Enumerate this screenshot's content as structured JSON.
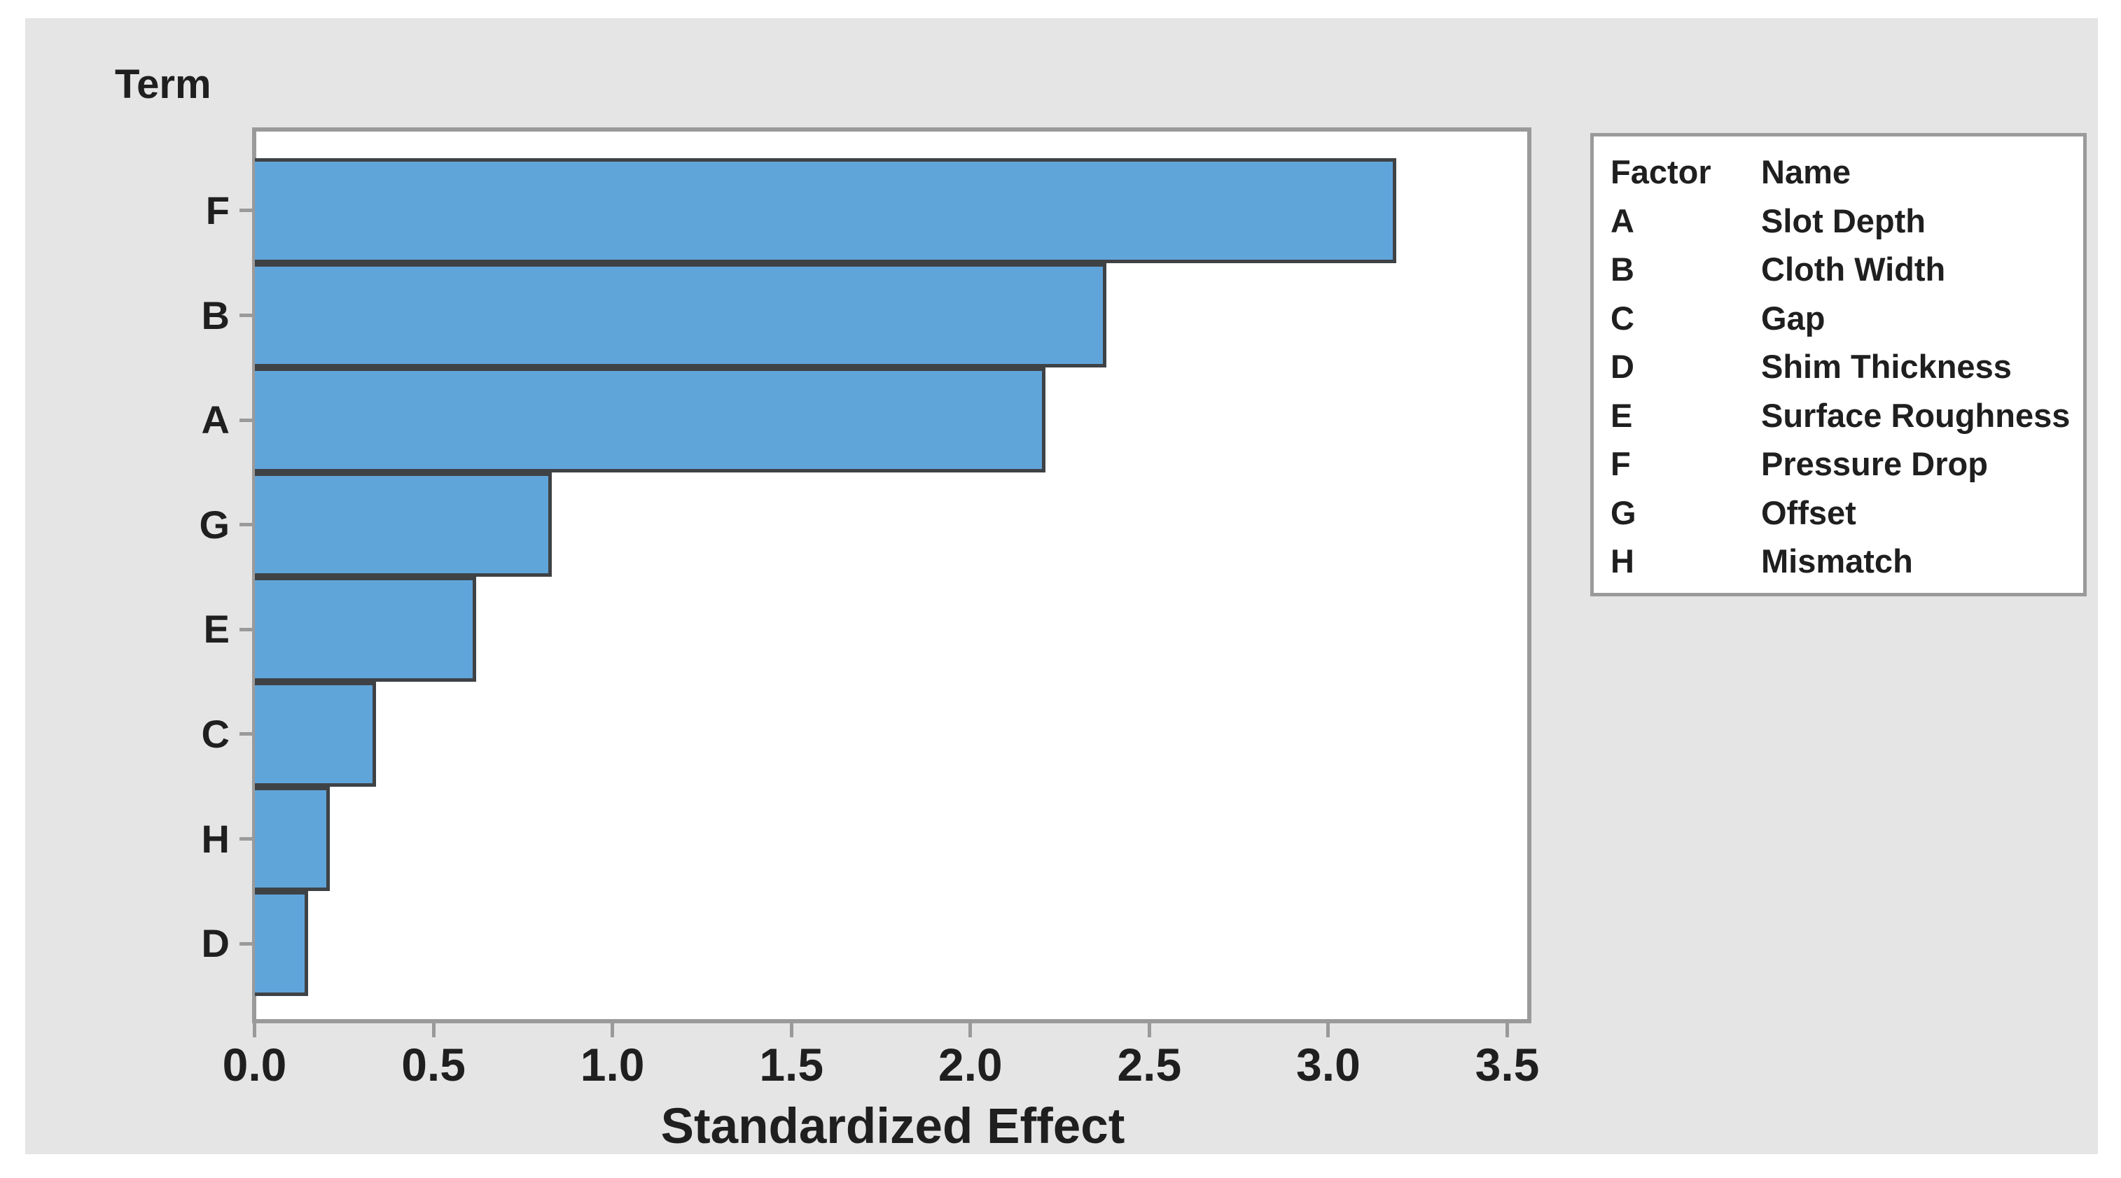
{
  "chart_data": {
    "type": "bar",
    "orientation": "horizontal",
    "title": "",
    "xlabel": "Standardized Effect",
    "ylabel": "Term",
    "categories": [
      "F",
      "B",
      "A",
      "G",
      "E",
      "C",
      "H",
      "D"
    ],
    "values": [
      3.19,
      2.38,
      2.21,
      0.83,
      0.62,
      0.34,
      0.21,
      0.15
    ],
    "xticks": [
      "0.0",
      "0.5",
      "1.0",
      "1.5",
      "2.0",
      "2.5",
      "3.0",
      "3.5"
    ],
    "xlim": [
      0,
      3.57
    ],
    "grid": false,
    "legend_position": "right",
    "bar_color": "#60a5da",
    "bar_border_color": "#3f4245"
  },
  "legend": {
    "header": {
      "factor": "Factor",
      "name": "Name"
    },
    "rows": [
      {
        "factor": "A",
        "name": "Slot Depth"
      },
      {
        "factor": "B",
        "name": "Cloth Width"
      },
      {
        "factor": "C",
        "name": "Gap"
      },
      {
        "factor": "D",
        "name": "Shim Thickness"
      },
      {
        "factor": "E",
        "name": "Surface Roughness"
      },
      {
        "factor": "F",
        "name": "Pressure Drop"
      },
      {
        "factor": "G",
        "name": "Offset"
      },
      {
        "factor": "H",
        "name": "Mismatch"
      }
    ]
  },
  "colors": {
    "panel_background": "#e5e5e5",
    "plot_background": "#ffffff",
    "axis_line": "#9a9a9a",
    "text": "#1f1f1f"
  }
}
